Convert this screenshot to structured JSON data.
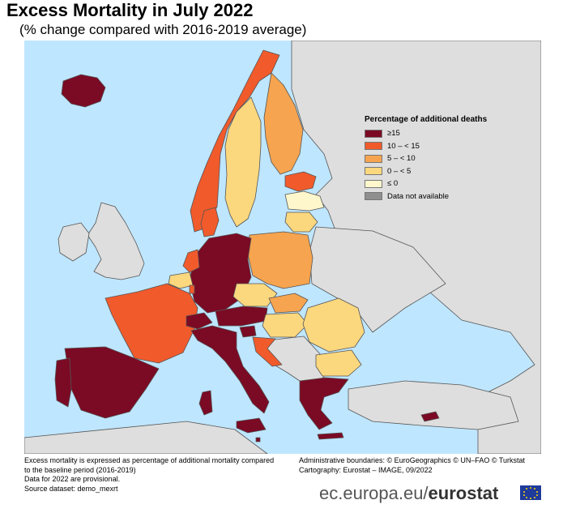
{
  "title": "Excess Mortality in July 2022",
  "subtitle": "(% change compared with 2016-2019 average)",
  "legend": {
    "title": "Percentage of additional deaths",
    "items": [
      {
        "label": "≥15",
        "color": "#7b0a24"
      },
      {
        "label": "10 – < 15",
        "color": "#f15a2b"
      },
      {
        "label": "5 – < 10",
        "color": "#f6a44f"
      },
      {
        "label": "0 – < 5",
        "color": "#fbd77e"
      },
      {
        "label": "≤ 0",
        "color": "#fff7cc"
      },
      {
        "label": "Data not available",
        "color": "#8f8f8f"
      }
    ]
  },
  "footer": {
    "note1": "Excess mortality is expressed as percentage of additional mortality compared",
    "note2": "to the baseline period (2016-2019)",
    "note3": "Data for 2022 are provisional.",
    "source": "Source dataset: demo_mexrt",
    "boundaries": "Administrative boundaries: © EuroGeographics © UN–FAO © Turkstat",
    "cartography": "Cartography: Eurostat – IMAGE, 09/2022"
  },
  "brand": {
    "url": "ec.europa.eu/",
    "name": "eurostat"
  },
  "map": {
    "background_land": "#dedede",
    "sea": "#bfe6ff",
    "countries": [
      {
        "name": "Iceland",
        "class": "≥15"
      },
      {
        "name": "Norway",
        "class": "10 – < 15"
      },
      {
        "name": "Sweden",
        "class": "0 – < 5"
      },
      {
        "name": "Finland",
        "class": "5 – < 10"
      },
      {
        "name": "Estonia",
        "class": "10 – < 15"
      },
      {
        "name": "Latvia",
        "class": "≤ 0"
      },
      {
        "name": "Lithuania",
        "class": "0 – < 5"
      },
      {
        "name": "Denmark",
        "class": "10 – < 15"
      },
      {
        "name": "Poland",
        "class": "5 – < 10"
      },
      {
        "name": "Germany",
        "class": "≥15"
      },
      {
        "name": "Netherlands",
        "class": "10 – < 15"
      },
      {
        "name": "Belgium",
        "class": "0 – < 5"
      },
      {
        "name": "Luxembourg",
        "class": "10 – < 15"
      },
      {
        "name": "France",
        "class": "10 – < 15"
      },
      {
        "name": "Spain",
        "class": "≥15"
      },
      {
        "name": "Portugal",
        "class": "≥15"
      },
      {
        "name": "Italy",
        "class": "≥15"
      },
      {
        "name": "Switzerland",
        "class": "≥15"
      },
      {
        "name": "Austria",
        "class": "≥15"
      },
      {
        "name": "Slovenia",
        "class": "≥15"
      },
      {
        "name": "Czechia",
        "class": "0 – < 5"
      },
      {
        "name": "Slovakia",
        "class": "5 – < 10"
      },
      {
        "name": "Hungary",
        "class": "0 – < 5"
      },
      {
        "name": "Croatia",
        "class": "10 – < 15"
      },
      {
        "name": "Romania",
        "class": "0 – < 5"
      },
      {
        "name": "Bulgaria",
        "class": "0 – < 5"
      },
      {
        "name": "Greece",
        "class": "≥15"
      },
      {
        "name": "Cyprus",
        "class": "≥15"
      },
      {
        "name": "Malta",
        "class": "≥15"
      }
    ]
  }
}
